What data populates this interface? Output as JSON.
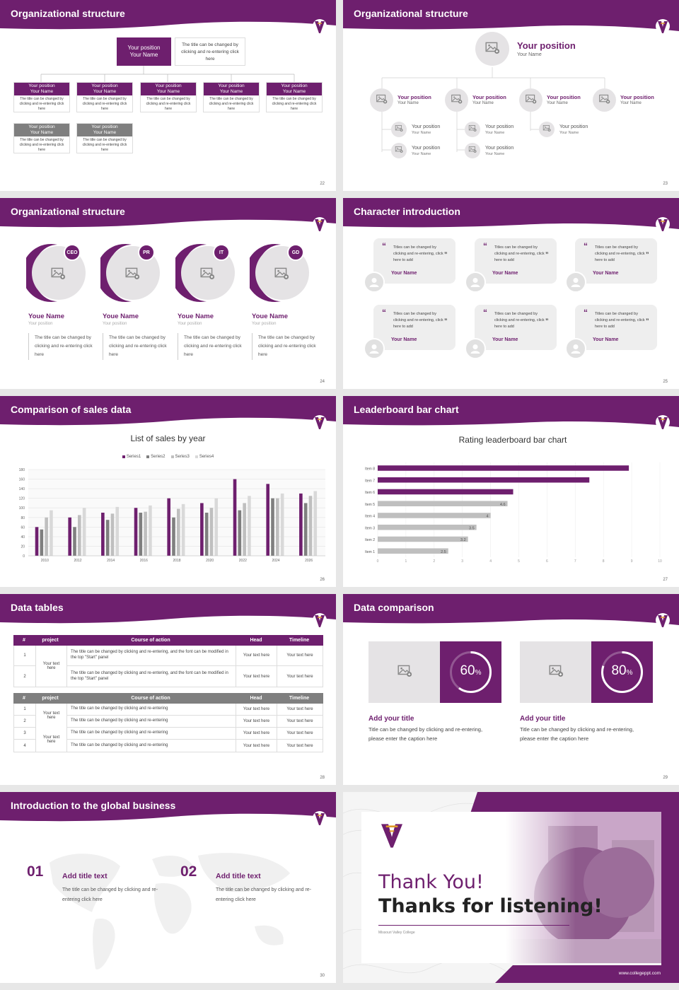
{
  "colors": {
    "brand": "#6e1f6e",
    "gray": "#7f7f7f",
    "light": "#e5e3e5"
  },
  "slides": {
    "s22": {
      "title": "Organizational structure",
      "page": "22",
      "top_label": "Your position\nYour Name",
      "top_desc": "The title can be changed by clicking and re-entering click here",
      "boxes": [
        {
          "pos": "Your position",
          "name": "Your Name",
          "desc": "The title can be changed by clicking and re-entering click here"
        },
        {
          "pos": "Your position",
          "name": "Your Name",
          "desc": "The title can be changed by clicking and re-entering click here"
        },
        {
          "pos": "Your position",
          "name": "Your Name",
          "desc": "The title can be changed by clicking and re-entering click here"
        },
        {
          "pos": "Your position",
          "name": "Your Name",
          "desc": "The title can be changed by clicking and re-entering click here"
        },
        {
          "pos": "Your position",
          "name": "Your Name",
          "desc": "The title can be changed by clicking and re-entering click here"
        }
      ],
      "gray_boxes": [
        {
          "pos": "Your position",
          "name": "Your Name",
          "desc": "The title can be changed by clicking and re-entering click here"
        },
        {
          "pos": "Your position",
          "name": "Your Name",
          "desc": "The title can be changed by clicking and re-entering click here"
        }
      ]
    },
    "s23": {
      "title": "Organizational structure",
      "page": "23",
      "top": {
        "pos": "Your position",
        "name": "Your Name"
      },
      "level2": [
        {
          "pos": "Your position",
          "name": "Your Name"
        },
        {
          "pos": "Your position",
          "name": "Your Name"
        },
        {
          "pos": "Your position",
          "name": "Your Name"
        },
        {
          "pos": "Your position",
          "name": "Your Name"
        }
      ],
      "level3": [
        {
          "pos": "Your position",
          "name": "Your Name"
        },
        {
          "pos": "Your position",
          "name": "Your Name"
        },
        {
          "pos": "Your position",
          "name": "Your Name"
        },
        {
          "pos": "Your position",
          "name": "Your Name"
        },
        {
          "pos": "Your position",
          "name": "Your Name"
        }
      ]
    },
    "s24": {
      "title": "Organizational structure",
      "page": "24",
      "people": [
        {
          "badge": "CEO",
          "name": "Youe Name",
          "pos": "Your position",
          "desc": "The title can be changed by clicking and re-entering click here"
        },
        {
          "badge": "PR",
          "name": "Youe Name",
          "pos": "Your position",
          "desc": "The title can be changed by clicking and re-entering click here"
        },
        {
          "badge": "IT",
          "name": "Youe Name",
          "pos": "Your position",
          "desc": "The title can be changed by clicking and re-entering click here"
        },
        {
          "badge": "GD",
          "name": "Youe Name",
          "pos": "Your position",
          "desc": "The title can be changed by clicking and re-entering click here"
        }
      ]
    },
    "s25": {
      "title": "Character introduction",
      "page": "25",
      "quote": "Titles can be changed by clicking and re-entering, click here to add",
      "name": "Your Name"
    },
    "s26": {
      "title": "Comparison of sales data",
      "page": "26",
      "chart_title": "List of sales by year",
      "legend": [
        "Series1",
        "Series2",
        "Series3",
        "Series4"
      ]
    },
    "s27": {
      "title": "Leaderboard bar chart",
      "page": "27",
      "chart_title": "Rating leaderboard bar chart"
    },
    "s28": {
      "title": "Data tables",
      "page": "28",
      "t1_headers": [
        "#",
        "project",
        "Course of action",
        "Head",
        "Timeline"
      ],
      "t1_rows": [
        {
          "n": "1",
          "action": "The title can be changed by clicking and re-entering, and the font can be modified in the top \"Start\" panel",
          "head": "Your text here",
          "time": "Your text here"
        },
        {
          "n": "2",
          "action": "The title can be changed by clicking and re-entering, and the font can be modified in the top \"Start\" panel",
          "head": "Your text here",
          "time": "Your text here"
        }
      ],
      "t1_project": "Your text here",
      "t2_headers": [
        "#",
        "project",
        "Course of action",
        "Head",
        "Timeline"
      ],
      "t2_rows": [
        {
          "n": "1",
          "action": "The title can be changed by clicking and re-entering",
          "head": "Your text here",
          "time": "Your text here"
        },
        {
          "n": "2",
          "action": "The title can be changed by clicking and re-entering",
          "head": "Your text here",
          "time": "Your text here"
        },
        {
          "n": "3",
          "action": "The title can be changed by clicking and re-entering",
          "head": "Your text here",
          "time": "Your text here"
        },
        {
          "n": "4",
          "action": "The title can be changed by clicking and re-entering",
          "head": "Your text here",
          "time": "Your text here"
        }
      ],
      "t2_project_a": "Your text here",
      "t2_project_b": "Your text here"
    },
    "s29": {
      "title": "Data comparison",
      "page": "29",
      "items": [
        {
          "percent": 60,
          "label": "60",
          "title": "Add your title",
          "desc": "Title can be changed by clicking and re-entering, please enter the caption here"
        },
        {
          "percent": 80,
          "label": "80",
          "title": "Add your title",
          "desc": "Title can be changed by clicking and re-entering, please enter the caption here"
        }
      ]
    },
    "s30": {
      "title": "Introduction to the global business",
      "page": "30",
      "items": [
        {
          "num": "01",
          "title": "Add title text",
          "desc": "The title can be changed by clicking and re-entering click here"
        },
        {
          "num": "02",
          "title": "Add title text",
          "desc": "The title can be changed by clicking and re-entering click here"
        }
      ]
    },
    "s31": {
      "thanks1": "Thank You!",
      "thanks2": "Thanks for listening!",
      "college": "Missouri Valley College",
      "url": "www.collegeppt.com"
    }
  },
  "chart_data": [
    {
      "type": "bar",
      "title": "List of sales by year",
      "categories": [
        "2010",
        "2012",
        "2014",
        "2016",
        "2018",
        "2020",
        "2022",
        "2024",
        "2026"
      ],
      "ylim": [
        0,
        180
      ],
      "yticks": [
        0,
        20,
        40,
        60,
        80,
        100,
        120,
        140,
        160,
        180
      ],
      "series": [
        {
          "name": "Series1",
          "color": "#6e1f6e",
          "values": [
            60,
            80,
            90,
            100,
            120,
            110,
            160,
            150,
            130
          ]
        },
        {
          "name": "Series2",
          "color": "#7f7f7f",
          "values": [
            55,
            60,
            75,
            90,
            80,
            90,
            95,
            120,
            110
          ]
        },
        {
          "name": "Series3",
          "color": "#bfbfbf",
          "values": [
            80,
            85,
            88,
            92,
            98,
            100,
            110,
            120,
            125
          ]
        },
        {
          "name": "Series4",
          "color": "#d9d9d9",
          "values": [
            95,
            100,
            102,
            105,
            108,
            120,
            125,
            130,
            135
          ]
        }
      ],
      "grid": true,
      "legend": "top"
    },
    {
      "type": "bar",
      "orientation": "horizontal",
      "title": "Rating leaderboard bar chart",
      "categories": [
        "Item 1",
        "Item 2",
        "Item 3",
        "Item 4",
        "Item 5",
        "Item 6",
        "Item 7",
        "Item 8"
      ],
      "values": [
        2.5,
        3.2,
        3.5,
        4,
        4.6,
        4.8,
        7.5,
        8.9
      ],
      "labels": [
        "2.5",
        "3.2",
        "3.5",
        "4",
        "4.6",
        "",
        "",
        ""
      ],
      "colors": [
        "#bfbfbf",
        "#bfbfbf",
        "#bfbfbf",
        "#bfbfbf",
        "#bfbfbf",
        "#6e1f6e",
        "#6e1f6e",
        "#6e1f6e"
      ],
      "xlim": [
        0,
        10
      ],
      "xticks": [
        0,
        1,
        2,
        3,
        4,
        5,
        6,
        7,
        8,
        9,
        10
      ],
      "grid": true
    }
  ]
}
